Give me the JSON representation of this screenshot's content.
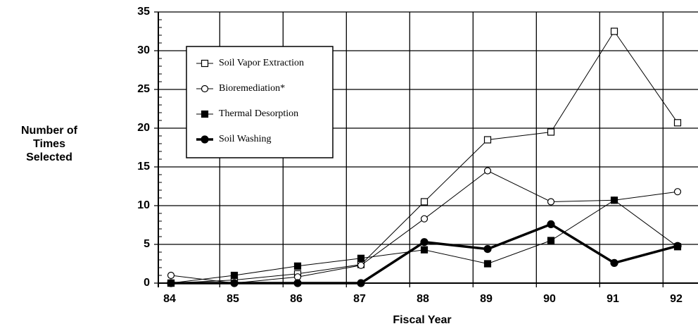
{
  "chart_data": {
    "type": "line",
    "ylabel": [
      "Number of",
      "Times",
      "Selected"
    ],
    "xlabel": "Fiscal Year",
    "categories": [
      "84",
      "85",
      "86",
      "87",
      "88",
      "89",
      "90",
      "91",
      "92"
    ],
    "ylim": [
      0,
      35
    ],
    "yticks": [
      0,
      5,
      10,
      15,
      20,
      25,
      30,
      35
    ],
    "grid": true,
    "legend": "upper left",
    "series": [
      {
        "name": "Soil Vapor Extraction",
        "color": "#000000",
        "marker": "square-open",
        "linewidth": 1,
        "values": [
          0,
          0.4,
          1.2,
          2.4,
          10.5,
          18.5,
          19.5,
          32.5,
          20.7
        ]
      },
      {
        "name": "Bioremediation*",
        "color": "#000000",
        "marker": "circle-open",
        "linewidth": 1,
        "values": [
          1,
          0,
          0.8,
          2.3,
          8.3,
          14.5,
          10.5,
          10.7,
          11.8
        ]
      },
      {
        "name": "Thermal Desorption",
        "color": "#000000",
        "marker": "square-filled",
        "linewidth": 1,
        "values": [
          0,
          1,
          2.2,
          3.2,
          4.3,
          2.5,
          5.5,
          10.7,
          4.7
        ]
      },
      {
        "name": "Soil Washing",
        "color": "#000000",
        "marker": "circle-filled",
        "linewidth": 3.5,
        "values": [
          0,
          0,
          0,
          0,
          5.3,
          4.4,
          7.6,
          2.6,
          4.8
        ]
      }
    ]
  }
}
